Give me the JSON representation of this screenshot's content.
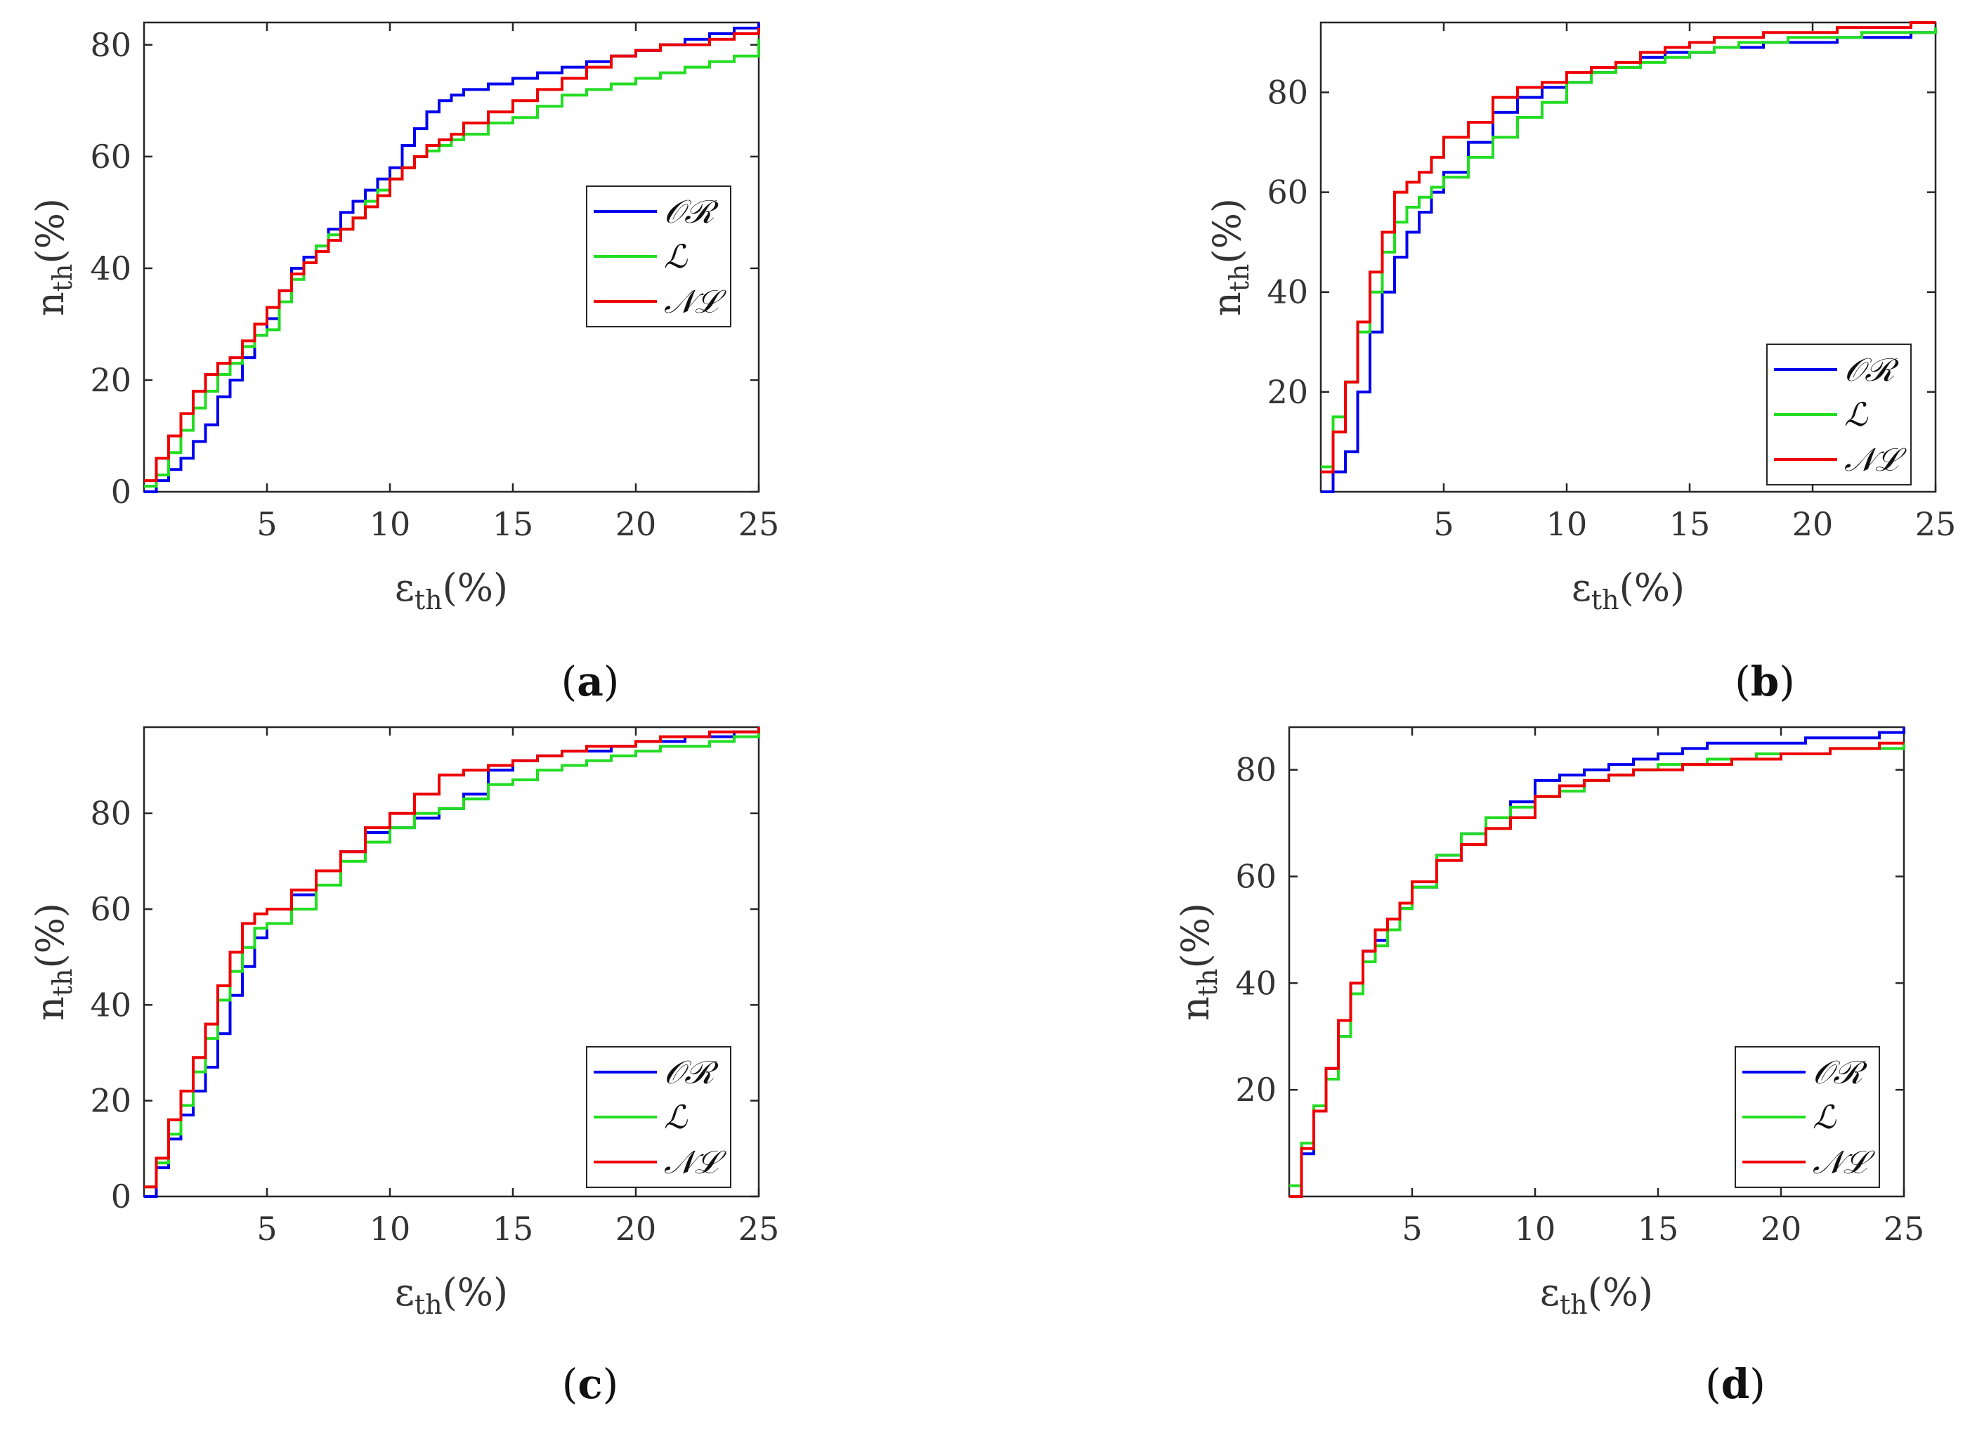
{
  "chart_data": [
    {
      "type": "line",
      "panel_label": "a",
      "xlabel_main": "ε",
      "xlabel_sub": "th",
      "xlabel_tail": "(%)",
      "ylabel_main": "n",
      "ylabel_sub": "th",
      "ylabel_tail": "(%)",
      "xlim": [
        0,
        25
      ],
      "ylim": [
        0,
        84
      ],
      "xticks": [
        5,
        10,
        15,
        20,
        25
      ],
      "yticks": [
        0,
        20,
        40,
        60,
        80
      ],
      "legend_position": "center-right",
      "series": [
        {
          "name": "OR",
          "color": "#0000ee",
          "x": [
            0,
            0.5,
            1,
            1.5,
            2,
            2.5,
            3,
            3.5,
            4,
            4.5,
            5,
            5.5,
            6,
            6.5,
            7,
            7.5,
            8,
            8.5,
            9,
            9.5,
            10,
            10.5,
            11,
            11.5,
            12,
            12.5,
            13,
            14,
            15,
            16,
            17,
            18,
            19,
            20,
            21,
            22,
            23,
            24,
            25
          ],
          "y": [
            0,
            2,
            4,
            6,
            9,
            12,
            17,
            20,
            24,
            28,
            31,
            36,
            40,
            42,
            44,
            47,
            50,
            52,
            54,
            56,
            58,
            62,
            65,
            68,
            70,
            71,
            72,
            73,
            74,
            75,
            76,
            77,
            78,
            79,
            80,
            81,
            82,
            83,
            84
          ]
        },
        {
          "name": "L",
          "color": "#22dd22",
          "x": [
            0,
            0.5,
            1,
            1.5,
            2,
            2.5,
            3,
            3.5,
            4,
            4.5,
            5,
            5.5,
            6,
            6.5,
            7,
            7.5,
            8,
            8.5,
            9,
            9.5,
            10,
            10.5,
            11,
            11.5,
            12,
            12.5,
            13,
            14,
            15,
            16,
            17,
            18,
            19,
            20,
            21,
            22,
            23,
            24,
            25
          ],
          "y": [
            1,
            3,
            7,
            11,
            15,
            18,
            21,
            23,
            26,
            28,
            29,
            34,
            38,
            41,
            44,
            46,
            47,
            49,
            52,
            54,
            56,
            58,
            60,
            61,
            62,
            63,
            64,
            66,
            67,
            69,
            71,
            72,
            73,
            74,
            75,
            76,
            77,
            78,
            81
          ]
        },
        {
          "name": "NL",
          "color": "#ee0000",
          "x": [
            0,
            0.5,
            1,
            1.5,
            2,
            2.5,
            3,
            3.5,
            4,
            4.5,
            5,
            5.5,
            6,
            6.5,
            7,
            7.5,
            8,
            8.5,
            9,
            9.5,
            10,
            10.5,
            11,
            11.5,
            12,
            12.5,
            13,
            14,
            15,
            16,
            17,
            18,
            19,
            20,
            21,
            22,
            23,
            24,
            25
          ],
          "y": [
            2,
            6,
            10,
            14,
            18,
            21,
            23,
            24,
            27,
            30,
            33,
            36,
            39,
            41,
            43,
            45,
            47,
            49,
            51,
            53,
            56,
            58,
            60,
            62,
            63,
            64,
            66,
            68,
            70,
            72,
            74,
            76,
            78,
            79,
            80,
            80,
            81,
            82,
            83
          ]
        }
      ]
    },
    {
      "type": "line",
      "panel_label": "b",
      "xlabel_main": "ε",
      "xlabel_sub": "th",
      "xlabel_tail": "(%)",
      "ylabel_main": "n",
      "ylabel_sub": "th",
      "ylabel_tail": "(%)",
      "xlim": [
        0,
        25
      ],
      "ylim": [
        0,
        94
      ],
      "xticks": [
        5,
        10,
        15,
        20,
        25
      ],
      "yticks": [
        20,
        40,
        60,
        80
      ],
      "legend_position": "bottom-right",
      "series": [
        {
          "name": "OR",
          "color": "#0000ee",
          "x": [
            0,
            0.5,
            1,
            1.5,
            2,
            2.5,
            3,
            3.5,
            4,
            4.5,
            5,
            6,
            7,
            8,
            9,
            10,
            11,
            12,
            13,
            14,
            15,
            16,
            17,
            18,
            19,
            20,
            21,
            22,
            23,
            24,
            25
          ],
          "y": [
            0,
            4,
            8,
            20,
            32,
            40,
            47,
            52,
            56,
            60,
            64,
            70,
            76,
            79,
            81,
            82,
            84,
            85,
            87,
            88,
            88,
            89,
            89,
            90,
            90,
            90,
            91,
            91,
            91,
            92,
            92
          ]
        },
        {
          "name": "L",
          "color": "#22dd22",
          "x": [
            0,
            0.5,
            1,
            1.5,
            2,
            2.5,
            3,
            3.5,
            4,
            4.5,
            5,
            6,
            7,
            8,
            9,
            10,
            11,
            12,
            13,
            14,
            15,
            16,
            17,
            18,
            19,
            20,
            21,
            22,
            23,
            24,
            25
          ],
          "y": [
            5,
            15,
            22,
            32,
            40,
            48,
            54,
            57,
            59,
            61,
            63,
            67,
            71,
            75,
            78,
            82,
            84,
            85,
            86,
            87,
            88,
            89,
            90,
            90,
            91,
            91,
            91,
            92,
            92,
            92,
            93
          ]
        },
        {
          "name": "NL",
          "color": "#ee0000",
          "x": [
            0,
            0.5,
            1,
            1.5,
            2,
            2.5,
            3,
            3.5,
            4,
            4.5,
            5,
            6,
            7,
            8,
            9,
            10,
            11,
            12,
            13,
            14,
            15,
            16,
            17,
            18,
            19,
            20,
            21,
            22,
            23,
            24,
            25
          ],
          "y": [
            4,
            12,
            22,
            34,
            44,
            52,
            60,
            62,
            64,
            67,
            71,
            74,
            79,
            81,
            82,
            84,
            85,
            86,
            88,
            89,
            90,
            91,
            91,
            92,
            92,
            92,
            93,
            93,
            93,
            94,
            94
          ]
        }
      ]
    },
    {
      "type": "line",
      "panel_label": "c",
      "xlabel_main": "ε",
      "xlabel_sub": "th",
      "xlabel_tail": "(%)",
      "ylabel_main": "n",
      "ylabel_sub": "th",
      "ylabel_tail": "(%)",
      "xlim": [
        0,
        25
      ],
      "ylim": [
        0,
        98
      ],
      "xticks": [
        5,
        10,
        15,
        20,
        25
      ],
      "yticks": [
        0,
        20,
        40,
        60,
        80
      ],
      "legend_position": "bottom-right",
      "series": [
        {
          "name": "OR",
          "color": "#0000ee",
          "x": [
            0,
            0.5,
            1,
            1.5,
            2,
            2.5,
            3,
            3.5,
            4,
            4.5,
            5,
            6,
            7,
            8,
            9,
            10,
            11,
            12,
            13,
            14,
            15,
            16,
            17,
            18,
            19,
            20,
            21,
            22,
            23,
            24,
            25
          ],
          "y": [
            0,
            6,
            12,
            17,
            22,
            27,
            34,
            42,
            48,
            54,
            57,
            63,
            68,
            72,
            76,
            77,
            79,
            81,
            84,
            89,
            91,
            92,
            93,
            93,
            94,
            95,
            95,
            96,
            96,
            97,
            98
          ]
        },
        {
          "name": "L",
          "color": "#22dd22",
          "x": [
            0,
            0.5,
            1,
            1.5,
            2,
            2.5,
            3,
            3.5,
            4,
            4.5,
            5,
            6,
            7,
            8,
            9,
            10,
            11,
            12,
            13,
            14,
            15,
            16,
            17,
            18,
            19,
            20,
            21,
            22,
            23,
            24,
            25
          ],
          "y": [
            2,
            7,
            13,
            19,
            26,
            33,
            41,
            47,
            52,
            56,
            57,
            60,
            65,
            70,
            74,
            77,
            80,
            81,
            83,
            86,
            87,
            89,
            90,
            91,
            92,
            93,
            94,
            94,
            95,
            96,
            97
          ]
        },
        {
          "name": "NL",
          "color": "#ee0000",
          "x": [
            0,
            0.5,
            1,
            1.5,
            2,
            2.5,
            3,
            3.5,
            4,
            4.5,
            5,
            6,
            7,
            8,
            9,
            10,
            11,
            12,
            13,
            14,
            15,
            16,
            17,
            18,
            19,
            20,
            21,
            22,
            23,
            24,
            25
          ],
          "y": [
            2,
            8,
            16,
            22,
            29,
            36,
            44,
            51,
            57,
            59,
            60,
            64,
            68,
            72,
            77,
            80,
            84,
            88,
            89,
            90,
            91,
            92,
            93,
            94,
            94,
            95,
            96,
            96,
            97,
            97,
            98
          ]
        }
      ]
    },
    {
      "type": "line",
      "panel_label": "d",
      "xlabel_main": "ε",
      "xlabel_sub": "th",
      "xlabel_tail": "(%)",
      "ylabel_main": "n",
      "ylabel_sub": "th",
      "ylabel_tail": "(%)",
      "xlim": [
        0,
        25
      ],
      "ylim": [
        0,
        88
      ],
      "xticks": [
        5,
        10,
        15,
        20,
        25
      ],
      "yticks": [
        20,
        40,
        60,
        80
      ],
      "legend_position": "bottom-right",
      "series": [
        {
          "name": "OR",
          "color": "#0000ee",
          "x": [
            0,
            0.5,
            1,
            1.5,
            2,
            2.5,
            3,
            3.5,
            4,
            4.5,
            5,
            6,
            7,
            8,
            9,
            10,
            11,
            12,
            13,
            14,
            15,
            16,
            17,
            18,
            19,
            20,
            21,
            22,
            23,
            24,
            25
          ],
          "y": [
            0,
            8,
            16,
            24,
            30,
            38,
            46,
            48,
            50,
            54,
            58,
            64,
            68,
            71,
            74,
            78,
            79,
            80,
            81,
            82,
            83,
            84,
            85,
            85,
            85,
            85,
            86,
            86,
            86,
            87,
            88
          ]
        },
        {
          "name": "L",
          "color": "#22dd22",
          "x": [
            0,
            0.5,
            1,
            1.5,
            2,
            2.5,
            3,
            3.5,
            4,
            4.5,
            5,
            6,
            7,
            8,
            9,
            10,
            11,
            12,
            13,
            14,
            15,
            16,
            17,
            18,
            19,
            20,
            21,
            22,
            23,
            24,
            25
          ],
          "y": [
            2,
            10,
            17,
            22,
            30,
            38,
            44,
            47,
            50,
            54,
            58,
            64,
            68,
            71,
            73,
            75,
            76,
            78,
            79,
            80,
            81,
            81,
            82,
            82,
            83,
            83,
            83,
            84,
            84,
            84,
            85
          ]
        },
        {
          "name": "NL",
          "color": "#ee0000",
          "x": [
            0,
            0.5,
            1,
            1.5,
            2,
            2.5,
            3,
            3.5,
            4,
            4.5,
            5,
            6,
            7,
            8,
            9,
            10,
            11,
            12,
            13,
            14,
            15,
            16,
            17,
            18,
            19,
            20,
            21,
            22,
            23,
            24,
            25
          ],
          "y": [
            0,
            9,
            16,
            24,
            33,
            40,
            46,
            50,
            52,
            55,
            59,
            63,
            66,
            69,
            71,
            75,
            77,
            78,
            79,
            80,
            80,
            81,
            81,
            82,
            82,
            83,
            83,
            84,
            84,
            85,
            85
          ]
        }
      ]
    }
  ]
}
